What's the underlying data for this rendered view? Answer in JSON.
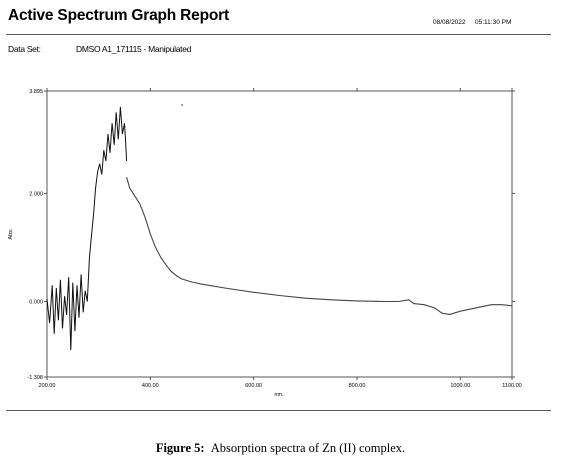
{
  "header": {
    "title": "Active Spectrum Graph Report",
    "date": "08/08/2022",
    "time": "05:11:30 PM"
  },
  "dataset": {
    "label": "Data Set:",
    "value": "DMSO A1_171115 - Manipulated"
  },
  "caption": {
    "figure_label": "Figure 5:",
    "text": "Absorption spectra of Zn (II) complex."
  },
  "chart_data": {
    "type": "line",
    "xlabel": "nm.",
    "ylabel": "Abs.",
    "xlim": [
      200,
      1100
    ],
    "ylim": [
      -1.398,
      3.895
    ],
    "x_ticks": [
      {
        "value": 200,
        "label": "200.00"
      },
      {
        "value": 400,
        "label": "400.00"
      },
      {
        "value": 600,
        "label": "600.00"
      },
      {
        "value": 800,
        "label": "800.00"
      },
      {
        "value": 1000,
        "label": "1000.00"
      },
      {
        "value": 1100,
        "label": "1100.00"
      }
    ],
    "y_ticks": [
      {
        "value": 3.895,
        "label": "3.895"
      },
      {
        "value": 2.0,
        "label": "2.000"
      },
      {
        "value": 0.0,
        "label": "0.000"
      },
      {
        "value": -1.398,
        "label": "-1.398"
      }
    ],
    "grid": false,
    "line_color": "#444444",
    "noisy_region": [
      [
        200,
        0.05
      ],
      [
        205,
        -0.4
      ],
      [
        210,
        0.3
      ],
      [
        214,
        -0.6
      ],
      [
        218,
        0.25
      ],
      [
        222,
        -0.35
      ],
      [
        226,
        0.4
      ],
      [
        230,
        -0.5
      ],
      [
        234,
        0.1
      ],
      [
        238,
        -0.25
      ],
      [
        242,
        0.45
      ],
      [
        246,
        -0.9
      ],
      [
        250,
        0.35
      ],
      [
        254,
        -0.55
      ],
      [
        258,
        0.3
      ],
      [
        262,
        -0.3
      ],
      [
        266,
        0.5
      ],
      [
        270,
        -0.2
      ],
      [
        274,
        0.2
      ],
      [
        278,
        0.0
      ],
      [
        282,
        0.8
      ],
      [
        286,
        1.2
      ],
      [
        290,
        1.6
      ],
      [
        294,
        2.1
      ],
      [
        298,
        2.4
      ],
      [
        302,
        2.55
      ],
      [
        306,
        2.35
      ],
      [
        310,
        2.8
      ],
      [
        314,
        2.6
      ],
      [
        318,
        3.1
      ],
      [
        322,
        2.75
      ],
      [
        326,
        3.3
      ],
      [
        330,
        2.9
      ],
      [
        334,
        3.5
      ],
      [
        338,
        3.0
      ],
      [
        342,
        3.6
      ],
      [
        346,
        3.1
      ],
      [
        350,
        3.3
      ],
      [
        352,
        3.0
      ],
      [
        354,
        2.6
      ]
    ],
    "smooth_region": [
      [
        354,
        2.3
      ],
      [
        360,
        2.1
      ],
      [
        370,
        1.95
      ],
      [
        380,
        1.8
      ],
      [
        390,
        1.55
      ],
      [
        400,
        1.25
      ],
      [
        410,
        1.0
      ],
      [
        420,
        0.82
      ],
      [
        430,
        0.68
      ],
      [
        440,
        0.56
      ],
      [
        450,
        0.48
      ],
      [
        460,
        0.42
      ],
      [
        480,
        0.36
      ],
      [
        500,
        0.32
      ],
      [
        550,
        0.24
      ],
      [
        600,
        0.17
      ],
      [
        650,
        0.11
      ],
      [
        700,
        0.06
      ],
      [
        750,
        0.03
      ],
      [
        800,
        0.01
      ],
      [
        850,
        0.0
      ],
      [
        880,
        0.0
      ],
      [
        900,
        0.03
      ],
      [
        910,
        -0.04
      ],
      [
        930,
        -0.06
      ],
      [
        950,
        -0.12
      ],
      [
        965,
        -0.22
      ],
      [
        980,
        -0.24
      ],
      [
        1000,
        -0.18
      ],
      [
        1030,
        -0.12
      ],
      [
        1060,
        -0.06
      ],
      [
        1080,
        -0.06
      ],
      [
        1100,
        -0.08
      ]
    ]
  }
}
